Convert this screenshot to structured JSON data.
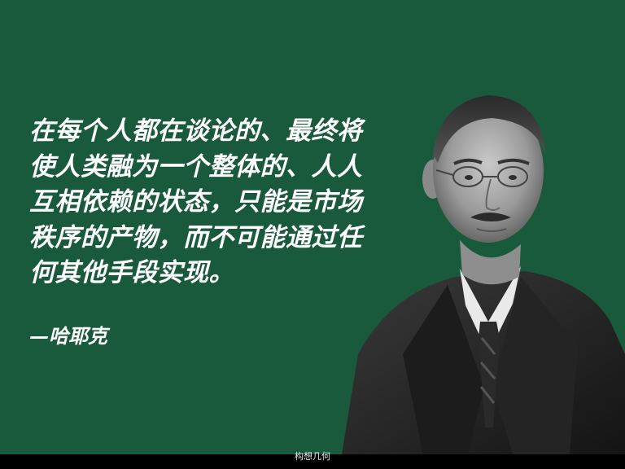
{
  "slide": {
    "background_color": "#1a5a3c",
    "quote_lines": [
      "在每个人都在谈论的、最终将",
      "使人类融为一个整体的、人人",
      "互相依赖的状态，只能是市场",
      "秩序的产物，而不可能通过任",
      "何其他手段实现。"
    ],
    "attribution": "—哈耶克"
  },
  "portrait": {
    "icon": "portrait-photo"
  },
  "footer": {
    "watermark": "构想几何"
  }
}
